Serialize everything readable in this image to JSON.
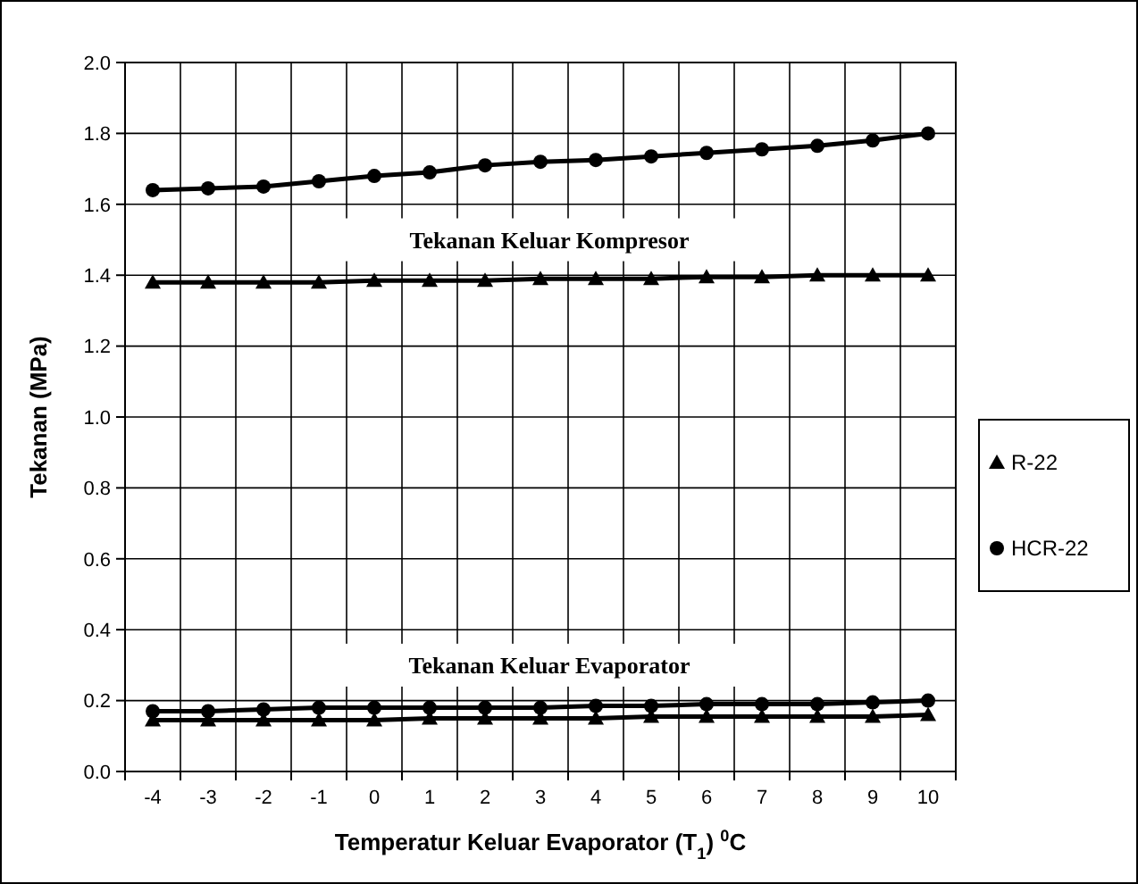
{
  "chart_data": {
    "type": "line",
    "xlabel": "Temperatur Keluar Evaporator (T$_{1}$) $^{0}$C",
    "ylabel": "Tekanan (MPa)",
    "categories": [
      "-4",
      "-3",
      "-2",
      "-1",
      "0",
      "1",
      "2",
      "3",
      "4",
      "5",
      "6",
      "7",
      "8",
      "9",
      "10"
    ],
    "ylim": [
      0,
      2
    ],
    "yticks": [
      {
        "value": 0,
        "label": "0.0"
      },
      {
        "value": 0.2,
        "label": "0.2"
      },
      {
        "value": 0.4,
        "label": "0.4"
      },
      {
        "value": 0.6,
        "label": "0.6"
      },
      {
        "value": 0.8,
        "label": "0.8"
      },
      {
        "value": 1,
        "label": "1.0"
      },
      {
        "value": 1.2,
        "label": "1.2"
      },
      {
        "value": 1.4,
        "label": "1.4"
      },
      {
        "value": 1.6,
        "label": "1.6"
      },
      {
        "value": 1.8,
        "label": "1.8"
      },
      {
        "value": 2,
        "label": "2.0"
      }
    ],
    "grid": true,
    "legend": "right",
    "line_style": "solid",
    "annotations": [
      "Tekanan Keluar Kompresor",
      "Tekanan Keluar Evaporator"
    ],
    "series": [
      {
        "name": "R-22",
        "color": "#000000",
        "marker": "triangle",
        "values": [
          1.38,
          1.38,
          1.38,
          1.38,
          1.385,
          1.385,
          1.385,
          1.39,
          1.39,
          1.39,
          1.395,
          1.395,
          1.4,
          1.4,
          1.4
        ]
      },
      {
        "name": "HCR-22",
        "color": "#000000",
        "marker": "circle",
        "values": [
          1.64,
          1.645,
          1.65,
          1.665,
          1.68,
          1.69,
          1.71,
          1.72,
          1.725,
          1.735,
          1.745,
          1.755,
          1.765,
          1.78,
          1.8
        ]
      },
      {
        "color": "#000000",
        "marker": "circle",
        "values": [
          0.17,
          0.17,
          0.175,
          0.18,
          0.18,
          0.18,
          0.18,
          0.18,
          0.185,
          0.185,
          0.19,
          0.19,
          0.19,
          0.195,
          0.2
        ]
      },
      {
        "color": "#000000",
        "marker": "triangle",
        "values": [
          0.145,
          0.145,
          0.145,
          0.145,
          0.145,
          0.15,
          0.15,
          0.15,
          0.15,
          0.155,
          0.155,
          0.155,
          0.155,
          0.155,
          0.16
        ]
      }
    ]
  }
}
